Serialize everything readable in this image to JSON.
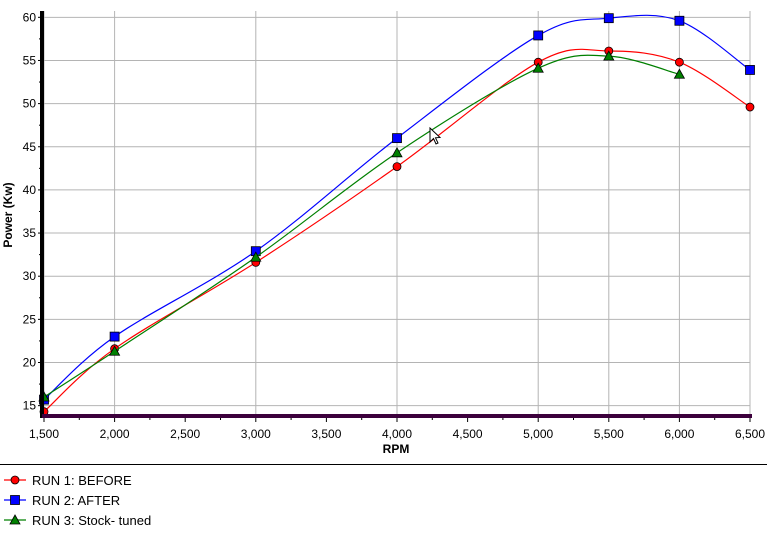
{
  "chart_data": {
    "type": "line",
    "xlabel": "RPM",
    "ylabel": "Power (Kw)",
    "xlim": [
      1500,
      6500
    ],
    "ylim": [
      13.8,
      60.5
    ],
    "x_ticks": [
      "1,500",
      "2,000",
      "2,500",
      "3,000",
      "3,500",
      "4,000",
      "4,500",
      "5,000",
      "5,500",
      "6,000",
      "6,500"
    ],
    "x_tick_values": [
      1500,
      2000,
      2500,
      3000,
      3500,
      4000,
      4500,
      5000,
      5500,
      6000,
      6500
    ],
    "y_ticks": [
      15,
      20,
      25,
      30,
      35,
      40,
      45,
      50,
      55,
      60
    ],
    "x_grid": [
      1500,
      2000,
      3000,
      4000,
      5000,
      5500,
      6000,
      6500
    ],
    "grid": true,
    "legend_placement": "bottom",
    "smooth": true,
    "series": [
      {
        "name": "RUN 1: BEFORE",
        "color": "#ff0000",
        "marker": "circle",
        "x": [
          1500,
          2000,
          3000,
          4000,
          5000,
          5500,
          6000,
          6500
        ],
        "values": [
          14.3,
          21.6,
          31.6,
          42.7,
          54.8,
          56.1,
          54.8,
          49.6
        ]
      },
      {
        "name": "RUN 2: AFTER",
        "color": "#0000ff",
        "marker": "square",
        "x": [
          1500,
          2000,
          3000,
          4000,
          5000,
          5500,
          6000,
          6500
        ],
        "values": [
          15.7,
          23.0,
          32.9,
          46.0,
          57.9,
          59.9,
          59.6,
          53.9
        ]
      },
      {
        "name": "RUN 3: Stock- tuned",
        "color": "#008000",
        "marker": "triangle",
        "x": [
          1500,
          2000,
          3000,
          4000,
          5000,
          5500,
          6000
        ],
        "values": [
          16.0,
          21.3,
          32.2,
          44.3,
          54.1,
          55.5,
          53.4
        ]
      }
    ]
  }
}
